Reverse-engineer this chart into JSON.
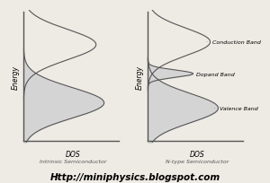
{
  "bg_color": "#eeeae4",
  "outline_color": "#555555",
  "fill_color": "#d4d4d4",
  "title_url": "Http://miniphysics.blogspot.com",
  "left_xlabel": "DOS",
  "left_label": "Intrinsic Semiconductor",
  "right_xlabel": "DOS",
  "right_label": "N-type Semiconductor",
  "ylabel": "Energy",
  "font_size_labels": 5.5,
  "font_size_url": 7.5,
  "font_size_annot": 4.5
}
